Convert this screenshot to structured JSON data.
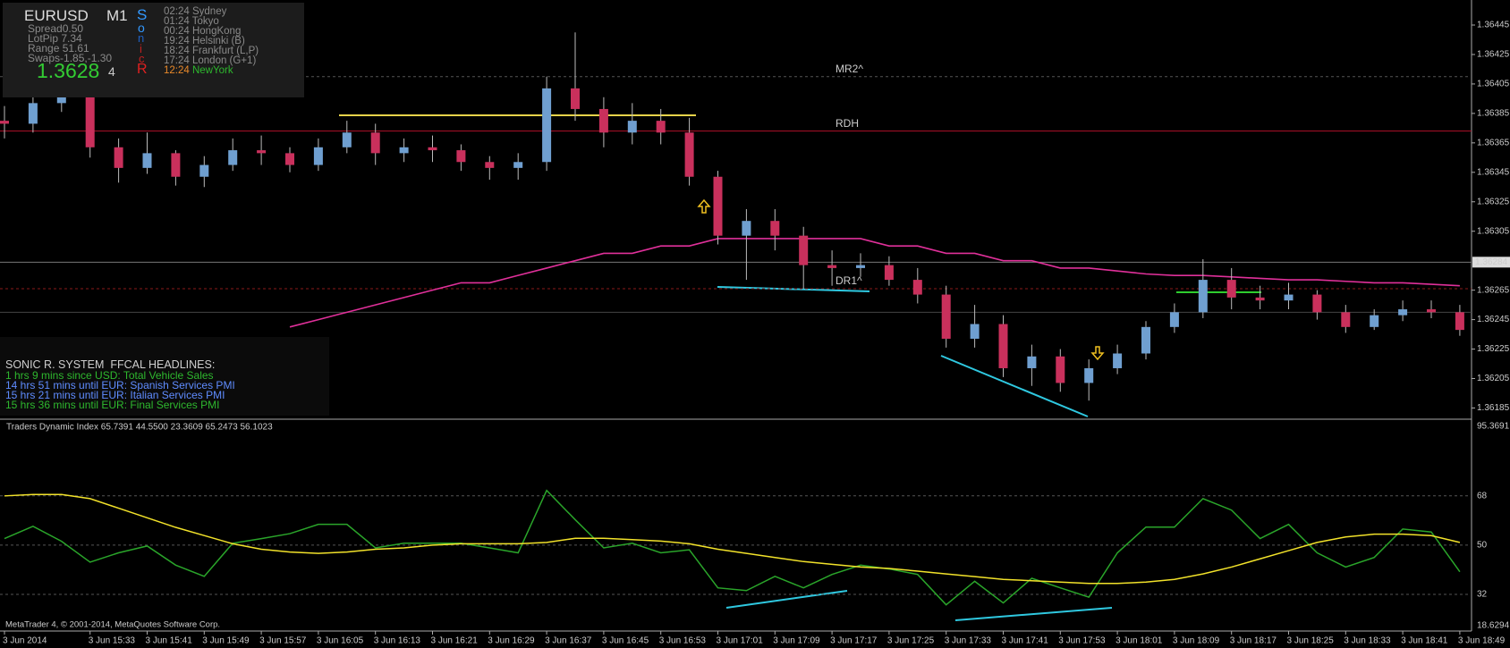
{
  "info_panel": {
    "symbol": "EURUSD",
    "timeframe": "M1",
    "lines": [
      "Spread0.50",
      "LotPip 7.34",
      "Range 51.61",
      "Swaps-1.85,-1.30"
    ],
    "price": "1.3628",
    "digit": "4",
    "sonic": [
      "S",
      "o",
      "n",
      "i",
      "c",
      "R"
    ],
    "sessions": [
      {
        "time": "02:24",
        "city": "Sydney"
      },
      {
        "time": "01:24",
        "city": "Tokyo"
      },
      {
        "time": "00:24",
        "city": "HongKong"
      },
      {
        "time": "19:24",
        "city": "Helsinki (B)"
      },
      {
        "time": "18:24",
        "city": "Frankfurt (L,P)"
      },
      {
        "time": "17:24",
        "city": "London (G+1)"
      },
      {
        "time": "12:24",
        "city": "NewYork"
      }
    ]
  },
  "headlines": {
    "title": "SONIC R. SYSTEM  FFCAL HEADLINES:",
    "items": [
      "1 hrs 9 mins since USD: Total Vehicle Sales",
      "14 hrs 51 mins until EUR: Spanish Services PMI",
      "15 hrs 21 mins until EUR: Italian Services PMI",
      "15 hrs 36 mins until EUR: Final Services PMI"
    ]
  },
  "footer": "MetaTrader 4, © 2001-2014, MetaQuotes Software Corp.",
  "chart_data": [
    {
      "type": "candlestick",
      "up_color": "#6f9fd0",
      "down_color": "#c9305c",
      "x": [
        "2014-06-03 15:21",
        "2014-06-03 15:25",
        "2014-06-03 15:29",
        "2014-06-03 15:33",
        "2014-06-03 15:37",
        "2014-06-03 15:41",
        "2014-06-03 15:45",
        "2014-06-03 15:49",
        "2014-06-03 15:53",
        "2014-06-03 15:57",
        "2014-06-03 16:01",
        "2014-06-03 16:05",
        "2014-06-03 16:09",
        "2014-06-03 16:13",
        "2014-06-03 16:17",
        "2014-06-03 16:21",
        "2014-06-03 16:25",
        "2014-06-03 16:29",
        "2014-06-03 16:33",
        "2014-06-03 16:37",
        "2014-06-03 16:41",
        "2014-06-03 16:45",
        "2014-06-03 16:49",
        "2014-06-03 16:53",
        "2014-06-03 16:57",
        "2014-06-03 17:01",
        "2014-06-03 17:05",
        "2014-06-03 17:09",
        "2014-06-03 17:13",
        "2014-06-03 17:17",
        "2014-06-03 17:21",
        "2014-06-03 17:25",
        "2014-06-03 17:29",
        "2014-06-03 17:33",
        "2014-06-03 17:37",
        "2014-06-03 17:41",
        "2014-06-03 17:49",
        "2014-06-03 17:53",
        "2014-06-03 17:57",
        "2014-06-03 18:01",
        "2014-06-03 18:05",
        "2014-06-03 18:09",
        "2014-06-03 18:13",
        "2014-06-03 18:17",
        "2014-06-03 18:21",
        "2014-06-03 18:25",
        "2014-06-03 18:29",
        "2014-06-03 18:33",
        "2014-06-03 18:37",
        "2014-06-03 18:41",
        "2014-06-03 18:45",
        "2014-06-03 18:49"
      ],
      "open": [
        1.3638,
        1.36378,
        1.36392,
        1.364,
        1.36362,
        1.36348,
        1.36358,
        1.36342,
        1.3635,
        1.3636,
        1.36358,
        1.3635,
        1.36362,
        1.36372,
        1.36358,
        1.36362,
        1.3636,
        1.36352,
        1.36348,
        1.36352,
        1.36402,
        1.36388,
        1.36372,
        1.3638,
        1.36372,
        1.36342,
        1.36302,
        1.36312,
        1.36302,
        1.36282,
        1.3628,
        1.36282,
        1.36272,
        1.36262,
        1.36232,
        1.36242,
        1.36212,
        1.3622,
        1.36202,
        1.36212,
        1.36222,
        1.3624,
        1.3625,
        1.36272,
        1.3626,
        1.36258,
        1.36262,
        1.3625,
        1.3624,
        1.36248,
        1.36252,
        1.3625
      ],
      "high": [
        1.3639,
        1.36398,
        1.3641,
        1.36404,
        1.36368,
        1.36372,
        1.3636,
        1.36356,
        1.36368,
        1.3637,
        1.36362,
        1.36368,
        1.3638,
        1.36378,
        1.36368,
        1.3637,
        1.36364,
        1.36356,
        1.36358,
        1.3641,
        1.3644,
        1.36396,
        1.36392,
        1.36388,
        1.36382,
        1.36346,
        1.3632,
        1.3632,
        1.36308,
        1.36292,
        1.3629,
        1.36288,
        1.3628,
        1.36268,
        1.36255,
        1.36248,
        1.36228,
        1.36225,
        1.36218,
        1.36228,
        1.36244,
        1.36256,
        1.36286,
        1.3628,
        1.36268,
        1.3627,
        1.36265,
        1.36255,
        1.36252,
        1.36258,
        1.36258,
        1.36255
      ],
      "low": [
        1.36368,
        1.36372,
        1.36386,
        1.36355,
        1.36338,
        1.36344,
        1.36336,
        1.36335,
        1.36346,
        1.3635,
        1.36345,
        1.36346,
        1.36358,
        1.3635,
        1.36352,
        1.36352,
        1.36346,
        1.3634,
        1.3634,
        1.36346,
        1.3638,
        1.36362,
        1.36364,
        1.36364,
        1.36336,
        1.36296,
        1.36272,
        1.36292,
        1.36266,
        1.36268,
        1.36274,
        1.36268,
        1.36256,
        1.36226,
        1.36226,
        1.36206,
        1.362,
        1.36196,
        1.3619,
        1.36208,
        1.36218,
        1.36236,
        1.36246,
        1.36252,
        1.36252,
        1.36252,
        1.36245,
        1.36236,
        1.36238,
        1.36244,
        1.36246,
        1.36234
      ],
      "close": [
        1.36378,
        1.36392,
        1.364,
        1.36362,
        1.36348,
        1.36358,
        1.36342,
        1.3635,
        1.3636,
        1.36358,
        1.3635,
        1.36362,
        1.36372,
        1.36358,
        1.36362,
        1.3636,
        1.36352,
        1.36348,
        1.36352,
        1.36402,
        1.36388,
        1.36372,
        1.3638,
        1.36372,
        1.36342,
        1.36302,
        1.36312,
        1.36302,
        1.36282,
        1.3628,
        1.36282,
        1.36272,
        1.36262,
        1.36232,
        1.36242,
        1.36212,
        1.3622,
        1.36202,
        1.36212,
        1.36222,
        1.3624,
        1.3625,
        1.36272,
        1.3626,
        1.36258,
        1.36262,
        1.3625,
        1.3624,
        1.36248,
        1.36252,
        1.3625,
        1.36238
      ],
      "ma": {
        "color": "#e0309a",
        "values": [
          null,
          null,
          null,
          null,
          null,
          null,
          null,
          null,
          null,
          null,
          1.3624,
          1.36245,
          1.3625,
          1.36255,
          1.3626,
          1.36265,
          1.3627,
          1.3627,
          1.36275,
          1.3628,
          1.36285,
          1.3629,
          1.3629,
          1.36295,
          1.36295,
          1.363,
          1.363,
          1.363,
          1.363,
          1.363,
          1.363,
          1.36295,
          1.36295,
          1.3629,
          1.3629,
          1.36285,
          1.36285,
          1.3628,
          1.3628,
          1.36278,
          1.36276,
          1.36275,
          1.36275,
          1.36274,
          1.36273,
          1.36272,
          1.36272,
          1.36271,
          1.3627,
          1.3627,
          1.36269,
          1.36268
        ]
      },
      "levels": [
        {
          "name": "MR2^",
          "value": 1.3641,
          "color": "#555555",
          "dash": true
        },
        {
          "name": "RDH",
          "value": 1.36373,
          "color": "#b0102a",
          "dash": false
        },
        {
          "name": "DR1^",
          "value": 1.36266,
          "color": "#8a1a1a",
          "dash": true
        },
        {
          "value": 1.3625,
          "color": "#444444",
          "dash": false
        }
      ],
      "current_price": 1.36284,
      "ylim": [
        1.36178,
        1.36462
      ],
      "yticks": [
        1.36185,
        1.36205,
        1.36225,
        1.36245,
        1.36265,
        1.36305,
        1.36325,
        1.36345,
        1.36365,
        1.36385,
        1.36405,
        1.36425,
        1.36445
      ],
      "xticks": [
        {
          "value": "2014-06-03 15:21",
          "label": "3 Jun 2014"
        },
        {
          "value": "2014-06-03 15:33",
          "label": "3 Jun 15:33"
        },
        {
          "value": "2014-06-03 15:41",
          "label": "3 Jun 15:41"
        },
        {
          "value": "2014-06-03 15:49",
          "label": "3 Jun 15:49"
        },
        {
          "value": "2014-06-03 15:57",
          "label": "3 Jun 15:57"
        },
        {
          "value": "2014-06-03 16:05",
          "label": "3 Jun 16:05"
        },
        {
          "value": "2014-06-03 16:13",
          "label": "3 Jun 16:13"
        },
        {
          "value": "2014-06-03 16:21",
          "label": "3 Jun 16:21"
        },
        {
          "value": "2014-06-03 16:29",
          "label": "3 Jun 16:29"
        },
        {
          "value": "2014-06-03 16:37",
          "label": "3 Jun 16:37"
        },
        {
          "value": "2014-06-03 16:45",
          "label": "3 Jun 16:45"
        },
        {
          "value": "2014-06-03 16:53",
          "label": "3 Jun 16:53"
        },
        {
          "value": "2014-06-03 17:01",
          "label": "3 Jun 17:01"
        },
        {
          "value": "2014-06-03 17:09",
          "label": "3 Jun 17:09"
        },
        {
          "value": "2014-06-03 17:17",
          "label": "3 Jun 17:17"
        },
        {
          "value": "2014-06-03 17:25",
          "label": "3 Jun 17:25"
        },
        {
          "value": "2014-06-03 17:33",
          "label": "3 Jun 17:33"
        },
        {
          "value": "2014-06-03 17:41",
          "label": "3 Jun 17:41"
        },
        {
          "value": "2014-06-03 17:53",
          "label": "3 Jun 17:53"
        },
        {
          "value": "2014-06-03 18:01",
          "label": "3 Jun 18:01"
        },
        {
          "value": "2014-06-03 18:09",
          "label": "3 Jun 18:09"
        },
        {
          "value": "2014-06-03 18:17",
          "label": "3 Jun 18:17"
        },
        {
          "value": "2014-06-03 18:25",
          "label": "3 Jun 18:25"
        },
        {
          "value": "2014-06-03 18:33",
          "label": "3 Jun 18:33"
        },
        {
          "value": "2014-06-03 18:41",
          "label": "3 Jun 18:41"
        },
        {
          "value": "2014-06-03 18:49",
          "label": "3 Jun 18:49"
        }
      ]
    },
    {
      "type": "line",
      "title": "Traders Dynamic Index 65.7391 44.5500 23.3609 65.2473 56.1023",
      "series": [
        {
          "color": "#2aa52a",
          "values": [
            52.4,
            56.9,
            51.4,
            43.8,
            47.2,
            49.7,
            42.7,
            38.6,
            50.7,
            52.4,
            54.2,
            57.6,
            57.6,
            49,
            50.7,
            50.7,
            50.7,
            49,
            47.2,
            70,
            59.3,
            49,
            50.7,
            47.2,
            48.3,
            34.4,
            33.4,
            38.6,
            34.4,
            39.3,
            42.7,
            41.3,
            39.3,
            28.2,
            36.8,
            28.9,
            37.9,
            34.4,
            31,
            47.2,
            56.6,
            56.6,
            67,
            62.8,
            52.4,
            57.6,
            47.2,
            42,
            45.5,
            55.9,
            54.8,
            40.3
          ]
        },
        {
          "color": "#f2e22a",
          "values": [
            68,
            68.5,
            68.5,
            67,
            63.5,
            60,
            56.5,
            53.5,
            50.5,
            48.5,
            47.5,
            47,
            47.5,
            48.5,
            49,
            50,
            50.5,
            50.5,
            50.5,
            51,
            52.5,
            52.5,
            52,
            51.5,
            50.5,
            48.5,
            47,
            45.5,
            44,
            43,
            42,
            41.5,
            40.5,
            39.5,
            38.5,
            37.5,
            37,
            36.5,
            36,
            36,
            36.5,
            37.5,
            39.5,
            42,
            45,
            48,
            51,
            53,
            54,
            54,
            53.5,
            51
          ]
        }
      ],
      "ylim": [
        18.6294,
        95.3691
      ],
      "yticks": [
        18.6294,
        32,
        50,
        68,
        95.3691
      ],
      "grid": true
    }
  ]
}
